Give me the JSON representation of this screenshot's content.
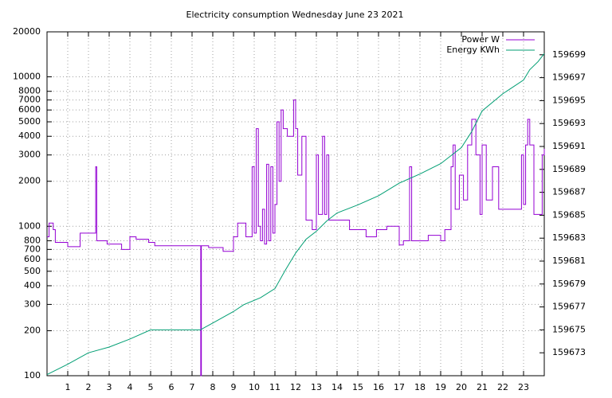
{
  "chart_data": {
    "type": "line",
    "title": "Electricity consumption Wednesday June 23 2021",
    "xlim": [
      0,
      24
    ],
    "xticks": [
      1,
      2,
      3,
      4,
      5,
      6,
      7,
      8,
      9,
      10,
      11,
      12,
      13,
      14,
      15,
      16,
      17,
      18,
      19,
      20,
      21,
      22,
      23
    ],
    "ylim": [
      100,
      20000
    ],
    "yticks": [
      100,
      200,
      300,
      400,
      500,
      600,
      700,
      800,
      1000,
      2000,
      3000,
      4000,
      5000,
      6000,
      7000,
      8000,
      10000,
      20000
    ],
    "ylog": true,
    "y2lim": [
      159671,
      159701
    ],
    "y2ticks": [
      159673,
      159675,
      159677,
      159679,
      159681,
      159683,
      159685,
      159687,
      159689,
      159691,
      159693,
      159695,
      159697,
      159699
    ],
    "grid": true,
    "legend": "top-right",
    "series": [
      {
        "name": "Power W",
        "color": "#9400d3",
        "step": true,
        "x": [
          0,
          0.1,
          0.3,
          0.4,
          1.0,
          1.6,
          2.3,
          2.35,
          2.4,
          2.9,
          3.6,
          4.0,
          4.3,
          4.9,
          5.2,
          7.4,
          7.42,
          7.45,
          7.8,
          8.5,
          9.0,
          9.2,
          9.6,
          9.9,
          10.0,
          10.1,
          10.2,
          10.3,
          10.4,
          10.5,
          10.6,
          10.7,
          10.8,
          10.9,
          11.0,
          11.1,
          11.2,
          11.3,
          11.4,
          11.6,
          11.9,
          12.0,
          12.1,
          12.3,
          12.5,
          12.8,
          13.0,
          13.1,
          13.3,
          13.4,
          13.5,
          13.6,
          14.0,
          14.6,
          15.4,
          15.9,
          16.4,
          17.0,
          17.2,
          17.5,
          17.6,
          18.4,
          19.0,
          19.2,
          19.5,
          19.6,
          19.7,
          19.9,
          20.1,
          20.3,
          20.5,
          20.7,
          20.9,
          21.0,
          21.2,
          21.5,
          21.8,
          22.2,
          22.7,
          22.9,
          23.0,
          23.1,
          23.2,
          23.3,
          23.5,
          23.9,
          24
        ],
        "values": [
          850,
          1050,
          950,
          780,
          730,
          900,
          900,
          2500,
          800,
          760,
          700,
          850,
          820,
          780,
          740,
          740,
          100,
          740,
          720,
          680,
          850,
          1050,
          850,
          2500,
          900,
          4500,
          1000,
          800,
          1300,
          760,
          2600,
          800,
          2500,
          900,
          1400,
          5000,
          2000,
          6000,
          4500,
          4000,
          7000,
          4500,
          2200,
          4000,
          1100,
          950,
          3000,
          1200,
          4000,
          1200,
          3000,
          1100,
          1100,
          950,
          850,
          950,
          1000,
          750,
          800,
          2500,
          800,
          870,
          800,
          950,
          2500,
          3500,
          1300,
          2200,
          1500,
          3500,
          5200,
          3000,
          1200,
          3500,
          1500,
          2500,
          1300,
          1300,
          1300,
          3000,
          1400,
          3500,
          5200,
          3500,
          1200,
          3000,
          3300
        ]
      },
      {
        "name": "Energy KWh",
        "color": "#009e73",
        "axis": "y2",
        "x": [
          0,
          1,
          2,
          3,
          4,
          5,
          7.4,
          8,
          9,
          9.5,
          10.3,
          11,
          11.5,
          12,
          12.5,
          13,
          13.5,
          14,
          15,
          16,
          17,
          18,
          19,
          20,
          20.5,
          21,
          22,
          23,
          23.3,
          23.7,
          24
        ],
        "values": [
          159671.1,
          159672.0,
          159673.0,
          159673.5,
          159674.2,
          159675.0,
          159675.0,
          159675.6,
          159676.6,
          159677.2,
          159677.8,
          159678.6,
          159680.2,
          159681.7,
          159682.9,
          159683.6,
          159684.5,
          159685.2,
          159685.9,
          159686.7,
          159687.8,
          159688.6,
          159689.5,
          159690.9,
          159692.3,
          159694.1,
          159695.6,
          159696.8,
          159697.7,
          159698.4,
          159699.1
        ]
      }
    ]
  }
}
